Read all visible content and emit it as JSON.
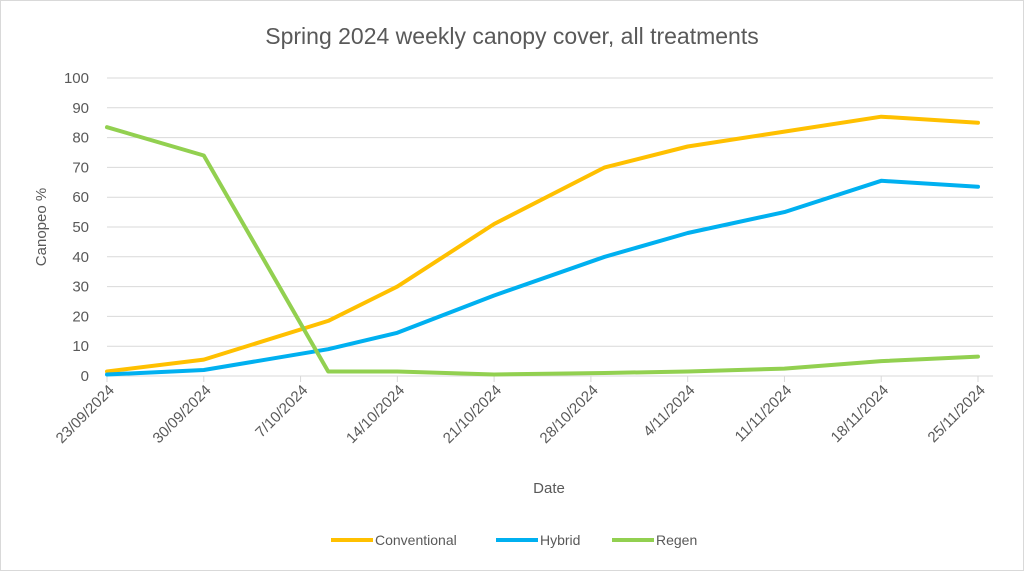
{
  "chart_data": {
    "type": "line",
    "title": "Spring 2024  weekly canopy cover, all treatments",
    "xlabel": "Date",
    "ylabel": "Canopeo %",
    "ylim": [
      0,
      100
    ],
    "yticks": [
      0,
      10,
      20,
      30,
      40,
      50,
      60,
      70,
      80,
      90,
      100
    ],
    "grid": true,
    "legend_position": "bottom",
    "x_tick_labels": [
      "23/09/2024",
      "30/09/2024",
      "7/10/2024",
      "14/10/2024",
      "21/10/2024",
      "28/10/2024",
      "4/11/2024",
      "11/11/2024",
      "18/11/2024",
      "25/11/2024"
    ],
    "x_range": [
      "2024-09-23",
      "2024-11-25"
    ],
    "series": [
      {
        "name": "Conventional",
        "color": "#FFC000",
        "x": [
          "2024-09-23",
          "2024-09-30",
          "2024-10-09",
          "2024-10-14",
          "2024-10-21",
          "2024-10-29",
          "2024-11-04",
          "2024-11-11",
          "2024-11-18",
          "2024-11-25"
        ],
        "values": [
          1.5,
          5.5,
          18.5,
          30,
          51,
          70,
          77,
          82,
          87,
          85
        ]
      },
      {
        "name": "Hybrid",
        "color": "#00B0F0",
        "x": [
          "2024-09-23",
          "2024-09-30",
          "2024-10-09",
          "2024-10-14",
          "2024-10-21",
          "2024-10-29",
          "2024-11-04",
          "2024-11-11",
          "2024-11-18",
          "2024-11-25"
        ],
        "values": [
          0.5,
          2,
          9,
          14.5,
          27,
          40,
          48,
          55,
          65.5,
          63.5
        ]
      },
      {
        "name": "Regen",
        "color": "#92D050",
        "x": [
          "2024-09-23",
          "2024-09-30",
          "2024-10-09",
          "2024-10-14",
          "2024-10-21",
          "2024-10-29",
          "2024-11-04",
          "2024-11-11",
          "2024-11-18",
          "2024-11-25"
        ],
        "values": [
          83.5,
          74,
          1.5,
          1.5,
          0.5,
          1,
          1.5,
          2.5,
          5,
          6.5
        ]
      }
    ]
  }
}
